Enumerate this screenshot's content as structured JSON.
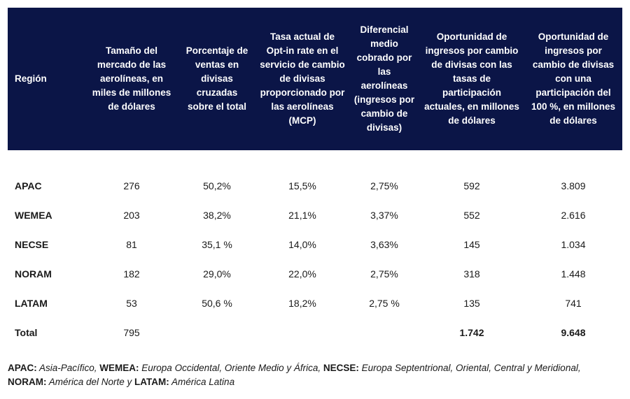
{
  "table": {
    "headers": [
      "Región",
      "Tamaño del mercado de las aerolíneas, en miles de millones de dólares",
      "Porcentaje de ventas en divisas cruzadas sobre el total",
      "Tasa actual de Opt-in rate en el servicio de cambio de divisas proporcionado por las aerolíneas (MCP)",
      "Diferencial medio cobrado por las aerolíneas (ingresos por cambio de divisas)",
      "Oportunidad de ingresos por cambio de divisas con las tasas de participación actuales, en millones de dólares",
      "Oportunidad de ingresos por cambio de divisas con una participación del 100 %, en millones de dólares"
    ],
    "rows": [
      [
        "APAC",
        "276",
        "50,2%",
        "15,5%",
        "2,75%",
        "592",
        "3.809"
      ],
      [
        "WEMEA",
        "203",
        "38,2%",
        "21,1%",
        "3,37%",
        "552",
        "2.616"
      ],
      [
        "NECSE",
        "81",
        "35,1 %",
        "14,0%",
        "3,63%",
        "145",
        "1.034"
      ],
      [
        "NORAM",
        "182",
        "29,0%",
        "22,0%",
        "2,75%",
        "318",
        "1.448"
      ],
      [
        "LATAM",
        "53",
        "50,6 %",
        "18,2%",
        "2,75 %",
        "135",
        "741"
      ],
      [
        "Total",
        "795",
        "",
        "",
        "",
        "1.742",
        "9.648"
      ]
    ]
  },
  "footnote": {
    "parts": [
      {
        "abbr": "APAC:",
        "text": " Asia-Pacífico,"
      },
      {
        "abbr": " WEMEA:",
        "text": " Europa Occidental, Oriente Medio y África,"
      },
      {
        "abbr": " NECSE:",
        "text": " Europa Septentrional, Oriental, Central y Meridional,"
      },
      {
        "abbr": " NORAM:",
        "text": " América del Norte y"
      },
      {
        "abbr": " LATAM:",
        "text": " América Latina"
      }
    ]
  }
}
